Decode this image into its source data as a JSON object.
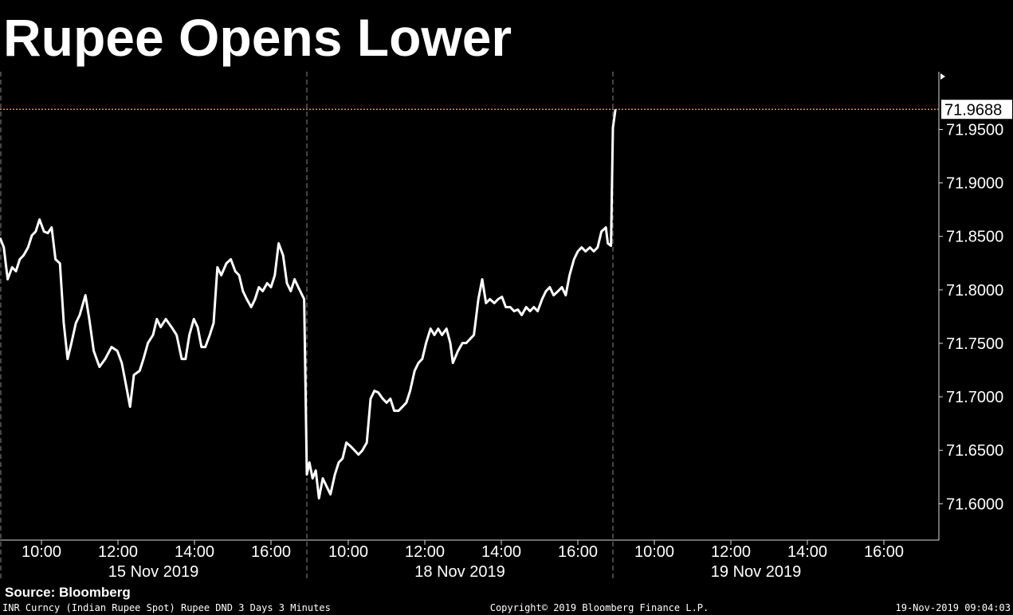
{
  "chart_data": {
    "type": "line",
    "title": "Rupee Opens Lower",
    "color": "#ffffff",
    "source": "Source: Bloomberg",
    "footer_left": "INR Curncy (Indian Rupee Spot) Rupee DND 3 Days 3 Minutes",
    "footer_center": "Copyright© 2019 Bloomberg Finance L.P.",
    "footer_right": "19-Nov-2019 09:04:03",
    "last_price": {
      "value": 71.9688,
      "label": "71.9688"
    },
    "last_price_color": "#e8845a",
    "ylim": [
      71.566,
      72.004
    ],
    "yticks": [
      {
        "value": 71.6,
        "label": "71.6000"
      },
      {
        "value": 71.65,
        "label": "71.6500"
      },
      {
        "value": 71.7,
        "label": "71.7000"
      },
      {
        "value": 71.75,
        "label": "71.7500"
      },
      {
        "value": 71.8,
        "label": "71.8000"
      },
      {
        "value": 71.85,
        "label": "71.8500"
      },
      {
        "value": 71.9,
        "label": "71.9000"
      },
      {
        "value": 71.95,
        "label": "71.9500"
      }
    ],
    "x_groups": [
      {
        "label": "15 Nov 2019",
        "ticks": [
          "10:00",
          "12:00",
          "14:00",
          "16:00"
        ]
      },
      {
        "label": "18 Nov 2019",
        "ticks": [
          "10:00",
          "12:00",
          "14:00",
          "16:00"
        ]
      },
      {
        "label": "19 Nov 2019",
        "ticks": [
          "10:00",
          "12:00",
          "14:00",
          "16:00"
        ]
      }
    ],
    "x": [
      "15 Nov 2019 08:55",
      "15 Nov 2019 09:01",
      "15 Nov 2019 09:07",
      "15 Nov 2019 09:14",
      "15 Nov 2019 09:20",
      "15 Nov 2019 09:26",
      "15 Nov 2019 09:32",
      "15 Nov 2019 09:39",
      "15 Nov 2019 09:45",
      "15 Nov 2019 09:51",
      "15 Nov 2019 09:57",
      "15 Nov 2019 10:04",
      "15 Nov 2019 10:10",
      "15 Nov 2019 10:16",
      "15 Nov 2019 10:22",
      "15 Nov 2019 10:29",
      "15 Nov 2019 10:35",
      "15 Nov 2019 10:41",
      "15 Nov 2019 10:47",
      "15 Nov 2019 10:54",
      "15 Nov 2019 11:00",
      "15 Nov 2019 11:09",
      "15 Nov 2019 11:15",
      "15 Nov 2019 11:22",
      "15 Nov 2019 11:31",
      "15 Nov 2019 11:40",
      "15 Nov 2019 11:50",
      "15 Nov 2019 11:59",
      "15 Nov 2019 12:06",
      "15 Nov 2019 12:12",
      "15 Nov 2019 12:19",
      "15 Nov 2019 12:25",
      "15 Nov 2019 12:34",
      "15 Nov 2019 12:40",
      "15 Nov 2019 12:47",
      "15 Nov 2019 12:55",
      "15 Nov 2019 13:01",
      "15 Nov 2019 13:07",
      "15 Nov 2019 13:15",
      "15 Nov 2019 13:24",
      "15 Nov 2019 13:32",
      "15 Nov 2019 13:40",
      "15 Nov 2019 13:46",
      "15 Nov 2019 13:52",
      "15 Nov 2019 13:59",
      "15 Nov 2019 14:05",
      "15 Nov 2019 14:11",
      "15 Nov 2019 14:17",
      "15 Nov 2019 14:24",
      "15 Nov 2019 14:30",
      "15 Nov 2019 14:36",
      "15 Nov 2019 14:42",
      "15 Nov 2019 14:50",
      "15 Nov 2019 14:57",
      "15 Nov 2019 15:04",
      "15 Nov 2019 15:10",
      "15 Nov 2019 15:16",
      "15 Nov 2019 15:22",
      "15 Nov 2019 15:29",
      "15 Nov 2019 15:35",
      "15 Nov 2019 15:41",
      "15 Nov 2019 15:47",
      "15 Nov 2019 15:54",
      "15 Nov 2019 16:00",
      "15 Nov 2019 16:06",
      "15 Nov 2019 16:12",
      "15 Nov 2019 16:19",
      "15 Nov 2019 16:25",
      "15 Nov 2019 16:31",
      "15 Nov 2019 16:37",
      "15 Nov 2019 16:44",
      "15 Nov 2019 16:52",
      "18 Nov 2019 08:55",
      "18 Nov 2019 08:59",
      "18 Nov 2019 09:04",
      "18 Nov 2019 09:09",
      "18 Nov 2019 09:14",
      "18 Nov 2019 09:20",
      "18 Nov 2019 09:26",
      "18 Nov 2019 09:32",
      "18 Nov 2019 09:39",
      "18 Nov 2019 09:45",
      "18 Nov 2019 09:51",
      "18 Nov 2019 09:57",
      "18 Nov 2019 10:04",
      "18 Nov 2019 10:10",
      "18 Nov 2019 10:16",
      "18 Nov 2019 10:22",
      "18 Nov 2019 10:29",
      "18 Nov 2019 10:35",
      "18 Nov 2019 10:41",
      "18 Nov 2019 10:47",
      "18 Nov 2019 10:54",
      "18 Nov 2019 11:00",
      "18 Nov 2019 11:06",
      "18 Nov 2019 11:12",
      "18 Nov 2019 11:19",
      "18 Nov 2019 11:25",
      "18 Nov 2019 11:31",
      "18 Nov 2019 11:37",
      "18 Nov 2019 11:44",
      "18 Nov 2019 11:50",
      "18 Nov 2019 11:56",
      "18 Nov 2019 12:02",
      "18 Nov 2019 12:09",
      "18 Nov 2019 12:15",
      "18 Nov 2019 12:21",
      "18 Nov 2019 12:27",
      "18 Nov 2019 12:34",
      "18 Nov 2019 12:40",
      "18 Nov 2019 12:44",
      "18 Nov 2019 12:52",
      "18 Nov 2019 12:59",
      "18 Nov 2019 13:05",
      "18 Nov 2019 13:11",
      "18 Nov 2019 13:17",
      "18 Nov 2019 13:24",
      "18 Nov 2019 13:30",
      "18 Nov 2019 13:36",
      "18 Nov 2019 13:42",
      "18 Nov 2019 13:49",
      "18 Nov 2019 13:55",
      "18 Nov 2019 14:01",
      "18 Nov 2019 14:07",
      "18 Nov 2019 14:14",
      "18 Nov 2019 14:20",
      "18 Nov 2019 14:26",
      "18 Nov 2019 14:32",
      "18 Nov 2019 14:39",
      "18 Nov 2019 14:45",
      "18 Nov 2019 14:51",
      "18 Nov 2019 14:57",
      "18 Nov 2019 15:04",
      "18 Nov 2019 15:10",
      "18 Nov 2019 15:16",
      "18 Nov 2019 15:22",
      "18 Nov 2019 15:29",
      "18 Nov 2019 15:35",
      "18 Nov 2019 15:41",
      "18 Nov 2019 15:47",
      "18 Nov 2019 15:54",
      "18 Nov 2019 16:00",
      "18 Nov 2019 16:06",
      "18 Nov 2019 16:12",
      "18 Nov 2019 16:19",
      "18 Nov 2019 16:25",
      "18 Nov 2019 16:31",
      "18 Nov 2019 16:37",
      "18 Nov 2019 16:44",
      "18 Nov 2019 16:47",
      "18 Nov 2019 16:52",
      "19 Nov 2019 08:55",
      "19 Nov 2019 08:59"
    ],
    "values": [
      71.8487,
      71.8397,
      71.8099,
      71.8211,
      71.8174,
      71.8286,
      71.8323,
      71.8397,
      71.8509,
      71.8546,
      71.8658,
      71.8546,
      71.8531,
      71.8584,
      71.8286,
      71.8248,
      71.769,
      71.7354,
      71.7503,
      71.769,
      71.7764,
      71.795,
      71.7727,
      71.7429,
      71.728,
      71.7354,
      71.7466,
      71.7429,
      71.7317,
      71.7131,
      71.6907,
      71.7205,
      71.7243,
      71.7354,
      71.7503,
      71.7578,
      71.7727,
      71.7652,
      71.7727,
      71.7652,
      71.7578,
      71.7354,
      71.7354,
      71.7578,
      71.7727,
      71.7652,
      71.7466,
      71.7466,
      71.7578,
      71.769,
      71.8211,
      71.8137,
      71.8248,
      71.8286,
      71.8174,
      71.8137,
      71.7988,
      71.7913,
      71.7839,
      71.7913,
      71.8025,
      71.7988,
      71.8062,
      71.8025,
      71.8137,
      71.8435,
      71.8323,
      71.8062,
      71.7988,
      71.8099,
      71.801,
      71.7913,
      71.6274,
      71.6386,
      71.6237,
      71.6311,
      71.6051,
      71.6237,
      71.6162,
      71.6088,
      71.6274,
      71.6386,
      71.6423,
      71.6572,
      71.6535,
      71.6498,
      71.646,
      71.6498,
      71.6572,
      71.6982,
      71.7056,
      71.7041,
      71.6982,
      71.6945,
      71.6982,
      71.687,
      71.687,
      71.6907,
      71.6945,
      71.7056,
      71.7243,
      71.7317,
      71.7354,
      71.7503,
      71.7637,
      71.7578,
      71.7637,
      71.7578,
      71.7637,
      71.7503,
      71.7317,
      71.7429,
      71.7503,
      71.7503,
      71.7541,
      71.7578,
      71.7913,
      71.8099,
      71.7876,
      71.7913,
      71.7876,
      71.7913,
      71.7935,
      71.7839,
      71.7839,
      71.7801,
      71.7816,
      71.7764,
      71.7839,
      71.7801,
      71.7839,
      71.7801,
      71.7913,
      71.7988,
      71.8025,
      71.795,
      71.7988,
      71.8025,
      71.795,
      71.8137,
      71.8286,
      71.836,
      71.8397,
      71.836,
      71.8397,
      71.836,
      71.8397,
      71.8546,
      71.8584,
      71.8435,
      71.8412,
      71.9515,
      71.9688
    ]
  }
}
